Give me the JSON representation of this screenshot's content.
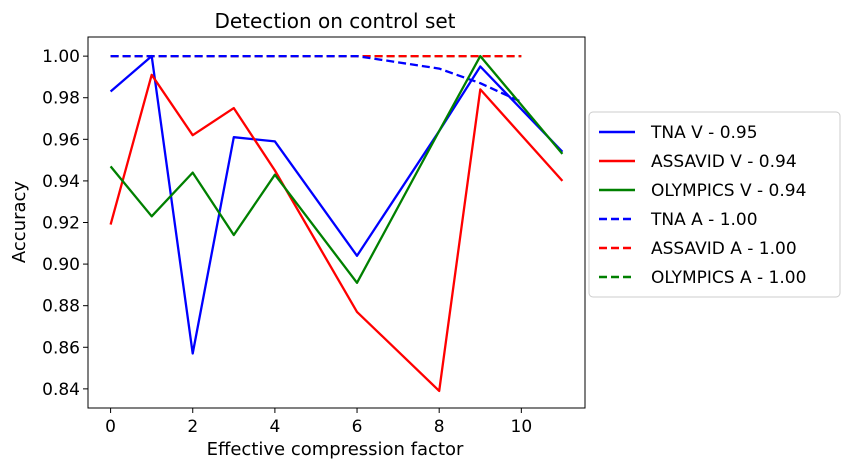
{
  "chart_data": {
    "type": "line",
    "title": "Detection on control set",
    "xlabel": "Effective compression factor",
    "ylabel": "Accuracy",
    "xlim": [
      -0.55,
      11.55
    ],
    "ylim": [
      0.8308,
      1.0092
    ],
    "xticks": [
      0,
      2,
      4,
      6,
      8,
      10
    ],
    "xtick_labels": [
      "0",
      "2",
      "4",
      "6",
      "8",
      "10"
    ],
    "yticks": [
      0.84,
      0.86,
      0.88,
      0.9,
      0.92,
      0.94,
      0.96,
      0.98,
      1.0
    ],
    "ytick_labels": [
      "0.84",
      "0.86",
      "0.88",
      "0.90",
      "0.92",
      "0.94",
      "0.96",
      "0.98",
      "1.00"
    ],
    "grid": false,
    "legend_position": "outside-right",
    "series": [
      {
        "name": "TNA V - 0.95",
        "color": "#0000ff",
        "dash": "solid",
        "x": [
          0,
          1,
          2,
          3,
          4,
          6,
          8,
          9,
          11
        ],
        "y": [
          0.983,
          1.0,
          0.857,
          0.961,
          0.959,
          0.904,
          0.964,
          0.995,
          0.954
        ]
      },
      {
        "name": "ASSAVID V - 0.94",
        "color": "#ff0000",
        "dash": "solid",
        "x": [
          0,
          1,
          2,
          3,
          4,
          6,
          8,
          9,
          11
        ],
        "y": [
          0.919,
          0.991,
          0.962,
          0.975,
          0.945,
          0.877,
          0.839,
          0.984,
          0.94
        ]
      },
      {
        "name": "OLYMPICS V - 0.94",
        "color": "#008000",
        "dash": "solid",
        "x": [
          0,
          1,
          2,
          3,
          4,
          6,
          8,
          9,
          11
        ],
        "y": [
          0.947,
          0.923,
          0.944,
          0.914,
          0.943,
          0.891,
          0.964,
          1.0,
          0.953
        ]
      },
      {
        "name": "TNA A - 1.00",
        "color": "#0000ff",
        "dash": "dashed",
        "x": [
          0,
          1,
          2,
          3,
          4,
          6,
          8,
          9,
          10
        ],
        "y": [
          1.0,
          1.0,
          1.0,
          1.0,
          1.0,
          1.0,
          0.994,
          0.987,
          0.978
        ]
      },
      {
        "name": "ASSAVID A - 1.00",
        "color": "#ff0000",
        "dash": "dashed",
        "x": [
          0,
          1,
          2,
          3,
          4,
          6,
          8,
          9,
          10
        ],
        "y": [
          1.0,
          1.0,
          1.0,
          1.0,
          1.0,
          1.0,
          1.0,
          1.0,
          1.0
        ]
      },
      {
        "name": "OLYMPICS A - 1.00",
        "color": "#008000",
        "dash": "dashed",
        "x": [
          0,
          1,
          2,
          3,
          4,
          6,
          8,
          9,
          10
        ],
        "y": [
          1.0,
          1.0,
          1.0,
          1.0,
          1.0,
          1.0,
          1.0,
          1.0,
          1.0
        ]
      }
    ]
  }
}
